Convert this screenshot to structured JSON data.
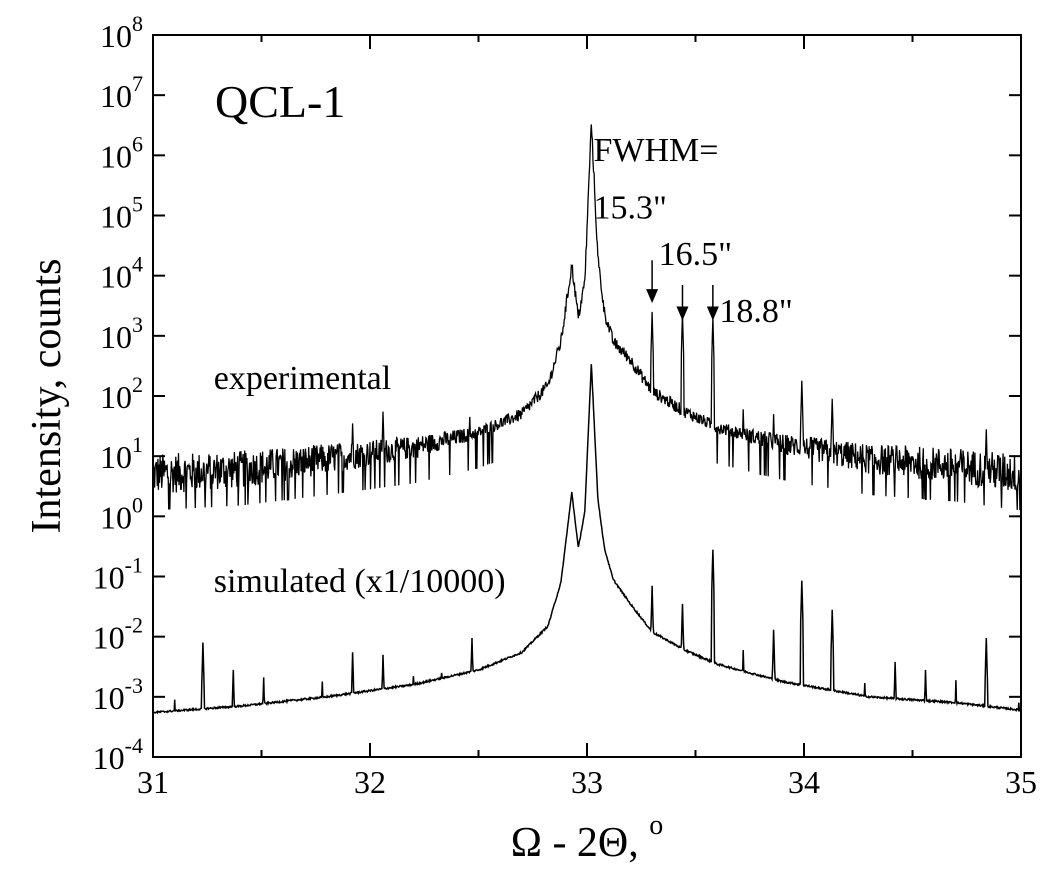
{
  "chart_data": {
    "type": "line",
    "title": "QCL-1",
    "xlabel": "Ω - 2Θ, °",
    "xlabel_parts": {
      "main": "Ω - 2Θ, ",
      "sup": "o"
    },
    "ylabel": "Intensity, counts",
    "xlim": [
      31,
      35
    ],
    "ylim": [
      0.0001,
      100000000
    ],
    "yscale": "log",
    "grid": false,
    "x_ticks": [
      31,
      32,
      33,
      34,
      35
    ],
    "y_tick_exponents": [
      -4,
      -3,
      -2,
      -1,
      0,
      1,
      2,
      3,
      4,
      5,
      6,
      7,
      8
    ],
    "y_tick_base": "10",
    "series": [
      {
        "name": "experimental",
        "background": [
          [
            31.0,
            5
          ],
          [
            31.4,
            6
          ],
          [
            31.8,
            9
          ],
          [
            32.2,
            14
          ],
          [
            32.5,
            25
          ],
          [
            32.7,
            50
          ],
          [
            32.82,
            150
          ],
          [
            32.88,
            800
          ],
          [
            32.93,
            15000
          ],
          [
            32.96,
            2000
          ],
          [
            32.99,
            8000
          ],
          [
            33.02,
            3500000
          ],
          [
            33.05,
            20000
          ],
          [
            33.08,
            2500
          ],
          [
            33.12,
            800
          ],
          [
            33.2,
            400
          ],
          [
            33.3,
            120
          ],
          [
            33.45,
            55
          ],
          [
            33.6,
            30
          ],
          [
            33.9,
            16
          ],
          [
            34.3,
            9
          ],
          [
            34.7,
            7
          ],
          [
            35.0,
            5
          ]
        ],
        "peaks": [
          [
            31.92,
            35
          ],
          [
            32.06,
            55
          ],
          [
            32.46,
            45
          ],
          [
            33.16,
            200
          ],
          [
            33.3,
            2500
          ],
          [
            33.44,
            2400
          ],
          [
            33.58,
            2000
          ],
          [
            33.72,
            60
          ],
          [
            33.86,
            50
          ],
          [
            33.99,
            180
          ],
          [
            34.13,
            90
          ],
          [
            34.84,
            28
          ]
        ]
      },
      {
        "name": "simulated (x1/10000)",
        "background": [
          [
            31.0,
            0.00055
          ],
          [
            31.4,
            0.0007
          ],
          [
            31.8,
            0.001
          ],
          [
            32.2,
            0.0016
          ],
          [
            32.5,
            0.0028
          ],
          [
            32.7,
            0.0055
          ],
          [
            32.82,
            0.015
          ],
          [
            32.88,
            0.08
          ],
          [
            32.93,
            2.5
          ],
          [
            32.96,
            0.3
          ],
          [
            32.99,
            1.2
          ],
          [
            33.02,
            350
          ],
          [
            33.05,
            2
          ],
          [
            33.08,
            0.3
          ],
          [
            33.12,
            0.09
          ],
          [
            33.2,
            0.035
          ],
          [
            33.3,
            0.012
          ],
          [
            33.45,
            0.006
          ],
          [
            33.6,
            0.0035
          ],
          [
            33.9,
            0.0018
          ],
          [
            34.3,
            0.001
          ],
          [
            34.7,
            0.0008
          ],
          [
            35.0,
            0.0006
          ]
        ],
        "peaks": [
          [
            31.1,
            0.0009
          ],
          [
            31.23,
            0.008
          ],
          [
            31.37,
            0.0028
          ],
          [
            31.51,
            0.0021
          ],
          [
            31.65,
            0.0009
          ],
          [
            31.78,
            0.0018
          ],
          [
            31.92,
            0.0055
          ],
          [
            32.06,
            0.005
          ],
          [
            32.2,
            0.0022
          ],
          [
            32.33,
            0.0025
          ],
          [
            32.47,
            0.0095
          ],
          [
            33.16,
            0.04
          ],
          [
            33.3,
            0.07
          ],
          [
            33.44,
            0.035
          ],
          [
            33.58,
            0.28
          ],
          [
            33.72,
            0.006
          ],
          [
            33.86,
            0.013
          ],
          [
            33.99,
            0.085
          ],
          [
            34.13,
            0.028
          ],
          [
            34.28,
            0.0017
          ],
          [
            34.42,
            0.0038
          ],
          [
            34.56,
            0.0028
          ],
          [
            34.7,
            0.0019
          ],
          [
            34.84,
            0.0095
          ],
          [
            34.99,
            0.0008
          ]
        ]
      }
    ],
    "annotations": [
      {
        "text": "experimental",
        "x": 31.28,
        "y": 130
      },
      {
        "text": "simulated (x1/10000)",
        "x": 31.28,
        "y": 0.055
      },
      {
        "text": "FWHM=",
        "x": 33.03,
        "y": 800000
      },
      {
        "text": "15.3\"",
        "x": 33.03,
        "y": 90000
      },
      {
        "text": "16.5\"",
        "x": 33.33,
        "y": 15000
      },
      {
        "text": "18.8\"",
        "x": 33.61,
        "y": 1700
      }
    ],
    "arrows": [
      {
        "x": 33.3,
        "y_from": 18000,
        "y_to": 3500
      },
      {
        "x": 33.44,
        "y_from": 7000,
        "y_to": 1800
      },
      {
        "x": 33.58,
        "y_from": 7000,
        "y_to": 1800
      }
    ]
  }
}
